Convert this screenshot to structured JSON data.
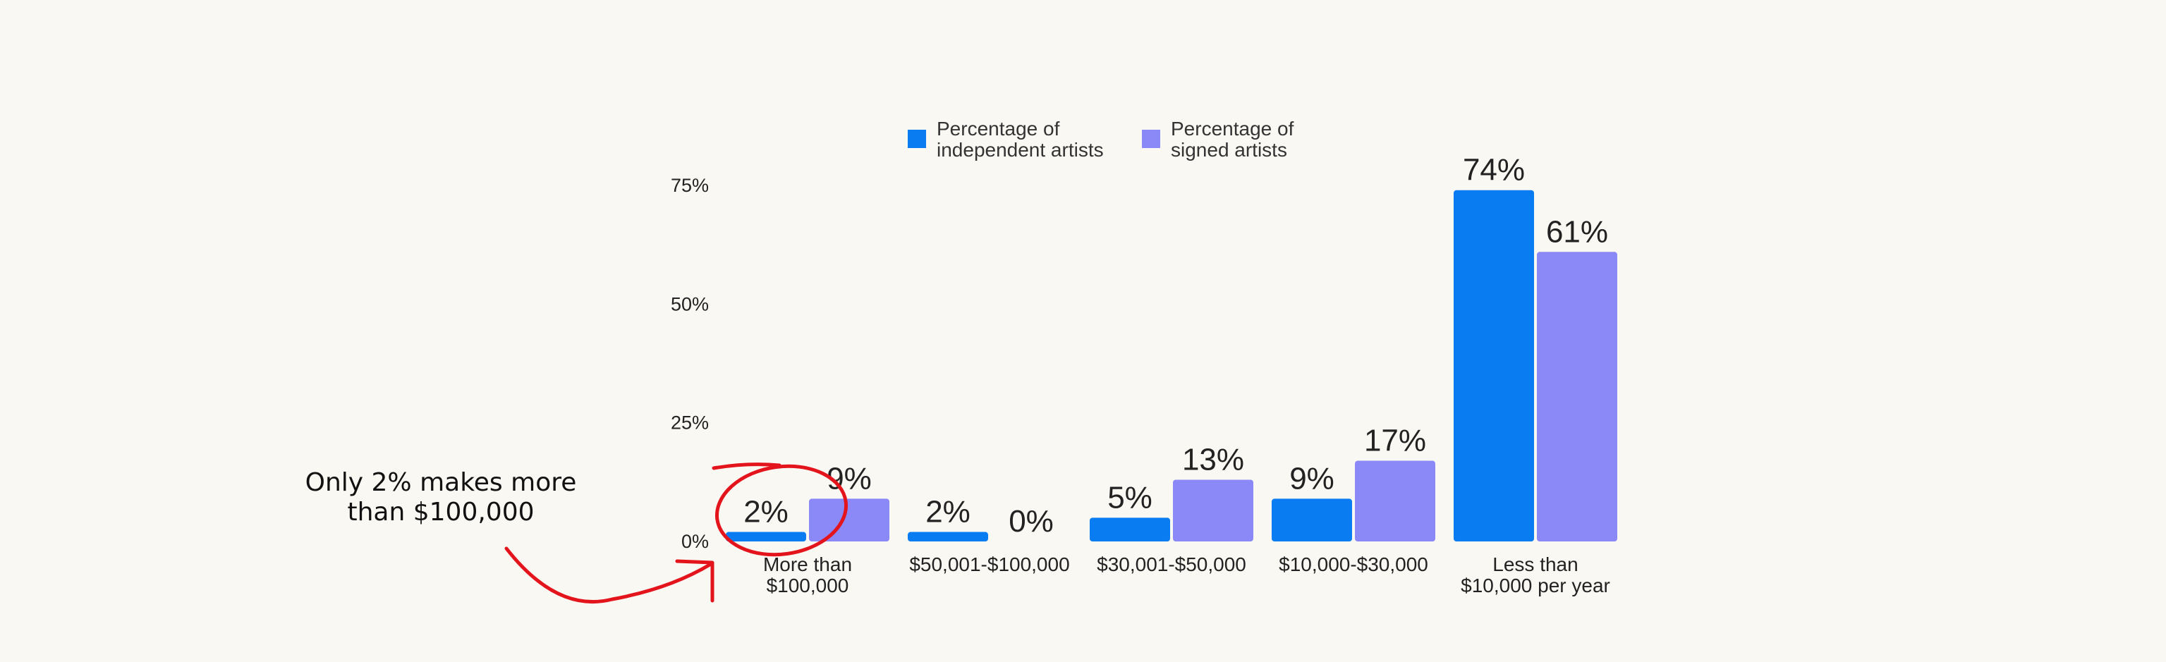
{
  "chart_data": {
    "type": "bar",
    "categories": [
      [
        "More than",
        "$100,000"
      ],
      [
        "$50,001-$100,000"
      ],
      [
        "$30,001-$50,000"
      ],
      [
        "$10,000-$30,000"
      ],
      [
        "Less than",
        "$10,000 per year"
      ]
    ],
    "series": [
      {
        "name": [
          "Percentage of",
          "independent artists"
        ],
        "color": "#0a7cf2",
        "values": [
          2,
          2,
          5,
          9,
          74
        ],
        "labels": [
          "2%",
          "2%",
          "5%",
          "9%",
          "74%"
        ]
      },
      {
        "name": [
          "Percentage of",
          "signed artists"
        ],
        "color": "#8b88f8",
        "values": [
          9,
          0,
          13,
          17,
          61
        ],
        "labels": [
          "9%",
          "0%",
          "13%",
          "17%",
          "61%"
        ]
      }
    ],
    "y_ticks": [
      0,
      25,
      50,
      75
    ],
    "y_tick_labels": [
      "0%",
      "25%",
      "50%",
      "75%"
    ],
    "ylim": [
      0,
      75
    ],
    "grid": false,
    "legend_position": "top",
    "annotation": {
      "text": [
        "Only 2% makes more",
        "than $100,000"
      ],
      "color": "#e3141c",
      "target_category": 0,
      "target_series": 0
    }
  }
}
